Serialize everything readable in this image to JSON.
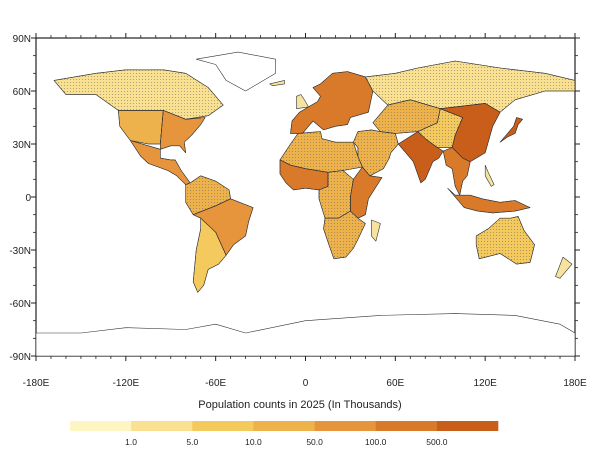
{
  "chart_data": {
    "type": "heatmap",
    "projection": "cylindrical-equidistant",
    "title": "",
    "xlabel": "",
    "ylabel": "",
    "x_ticks": [
      "-180E",
      "-120E",
      "-60E",
      "0",
      "60E",
      "120E",
      "180E"
    ],
    "x_tick_values": [
      -180,
      -120,
      -60,
      0,
      60,
      120,
      180
    ],
    "y_ticks": [
      "90N",
      "60N",
      "30N",
      "0",
      "-30N",
      "-60N",
      "-90N"
    ],
    "y_tick_values": [
      90,
      60,
      30,
      0,
      -30,
      -60,
      -90
    ],
    "xlim": [
      -180,
      180
    ],
    "ylim": [
      -90,
      90
    ],
    "hatched_overlay": true,
    "colorbar": {
      "title": "Population counts in 2025 (In Thousands)",
      "labels": [
        "1.0",
        "5.0",
        "10.0",
        "50.0",
        "100.0",
        "500.0"
      ],
      "label_after_bin": [
        1,
        2,
        3,
        4,
        5,
        6
      ],
      "colors": [
        "#fdf5c2",
        "#f9e191",
        "#f4c95e",
        "#eeb24d",
        "#e6953c",
        "#d97a2b",
        "#c95e1a"
      ]
    }
  },
  "regions": [
    {
      "name": "north-america-east",
      "level": 4
    },
    {
      "name": "north-america-west",
      "level": 3
    },
    {
      "name": "canada-south",
      "level": 1
    },
    {
      "name": "mexico-central-america",
      "level": 4
    },
    {
      "name": "south-america-north",
      "level": 3
    },
    {
      "name": "south-america-east",
      "level": 4
    },
    {
      "name": "south-america-south",
      "level": 2
    },
    {
      "name": "europe",
      "level": 5
    },
    {
      "name": "north-africa",
      "level": 3
    },
    {
      "name": "west-africa",
      "level": 5
    },
    {
      "name": "central-africa",
      "level": 3
    },
    {
      "name": "east-africa",
      "level": 5
    },
    {
      "name": "southern-africa",
      "level": 3
    },
    {
      "name": "middle-east",
      "level": 3
    },
    {
      "name": "russia-siberia",
      "level": 1
    },
    {
      "name": "central-asia",
      "level": 3
    },
    {
      "name": "india",
      "level": 6
    },
    {
      "name": "china-east",
      "level": 6
    },
    {
      "name": "china-west",
      "level": 2
    },
    {
      "name": "southeast-asia",
      "level": 5
    },
    {
      "name": "japan",
      "level": 6
    },
    {
      "name": "indonesia",
      "level": 5
    },
    {
      "name": "australia",
      "level": 2
    }
  ]
}
